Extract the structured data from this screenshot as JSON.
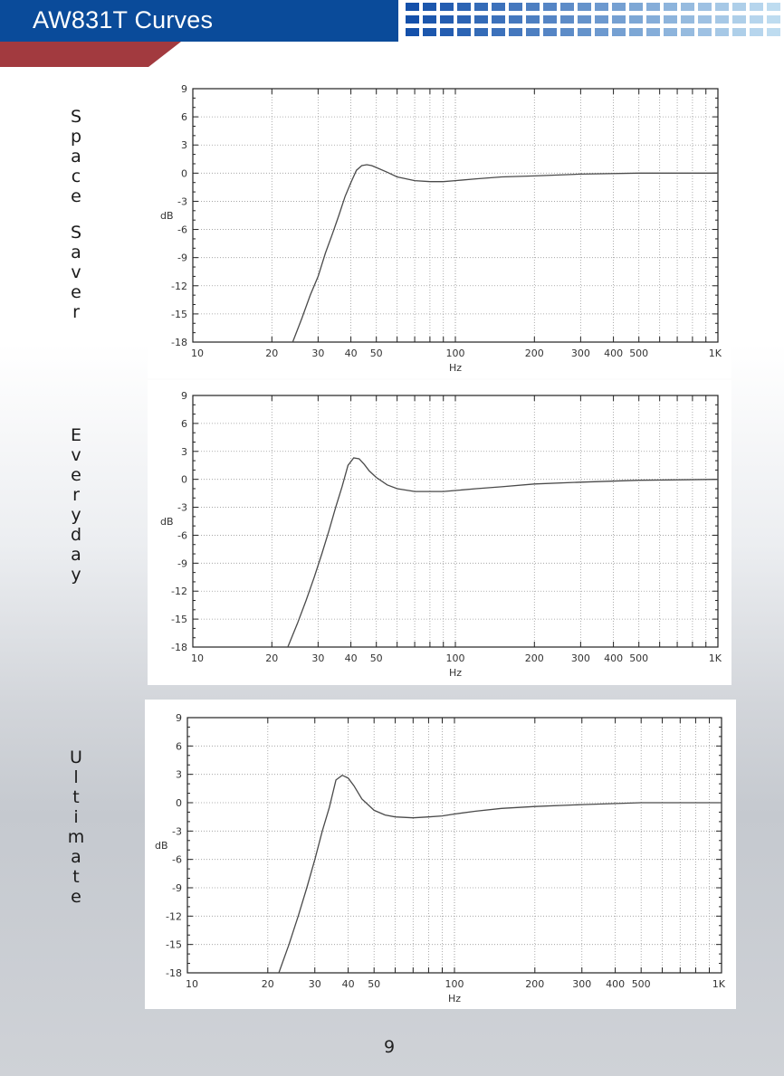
{
  "header": {
    "title": "AW831T Curves"
  },
  "page_number": "9",
  "colors": {
    "header_blue": "#0a4b9a",
    "header_red": "#a23a3f"
  },
  "side_labels": [
    "Space Saver",
    "Everyday",
    "Ultimate"
  ],
  "chart_data": [
    {
      "type": "line",
      "xscale": "log",
      "xlabel": "Hz",
      "ylabel": "dB",
      "xlim": [
        10,
        1000
      ],
      "ylim": [
        -18,
        9
      ],
      "xticks": [
        "10",
        "20",
        "30",
        "40",
        "50",
        "100",
        "200",
        "300",
        "400",
        "500",
        "1K"
      ],
      "yticks": [
        "9",
        "6",
        "3",
        "0",
        "-3",
        "-6",
        "-9",
        "-12",
        "-15",
        "-18"
      ],
      "grid": true,
      "series": [
        {
          "x": [
            24,
            26,
            28,
            30,
            32,
            34,
            36,
            38,
            40,
            42,
            44,
            46,
            48,
            50,
            55,
            60,
            70,
            80,
            90,
            100,
            120,
            150,
            200,
            300,
            500,
            1000
          ],
          "y": [
            -18,
            -15.5,
            -13,
            -11,
            -8.5,
            -6.5,
            -4.5,
            -2.5,
            -1,
            0.3,
            0.8,
            0.9,
            0.8,
            0.6,
            0.1,
            -0.4,
            -0.8,
            -0.9,
            -0.9,
            -0.8,
            -0.6,
            -0.4,
            -0.3,
            -0.1,
            0,
            0
          ]
        }
      ]
    },
    {
      "type": "line",
      "xscale": "log",
      "xlabel": "Hz",
      "ylabel": "dB",
      "xlim": [
        10,
        1000
      ],
      "ylim": [
        -18,
        9
      ],
      "xticks": [
        "10",
        "20",
        "30",
        "40",
        "50",
        "100",
        "200",
        "300",
        "400",
        "500",
        "1K"
      ],
      "yticks": [
        "9",
        "6",
        "3",
        "0",
        "-3",
        "-6",
        "-9",
        "-12",
        "-15",
        "-18"
      ],
      "grid": true,
      "series": [
        {
          "x": [
            23,
            25,
            27,
            29,
            31,
            33,
            35,
            37,
            39,
            41,
            43,
            45,
            47,
            50,
            55,
            60,
            70,
            80,
            90,
            100,
            120,
            150,
            200,
            300,
            500,
            1000
          ],
          "y": [
            -18,
            -15.5,
            -13,
            -10.5,
            -8,
            -5.5,
            -3,
            -0.8,
            1.5,
            2.3,
            2.2,
            1.6,
            0.9,
            0.2,
            -0.6,
            -1,
            -1.3,
            -1.3,
            -1.3,
            -1.2,
            -1,
            -0.8,
            -0.5,
            -0.3,
            -0.1,
            0
          ]
        }
      ]
    },
    {
      "type": "line",
      "xscale": "log",
      "xlabel": "Hz",
      "ylabel": "dB",
      "xlim": [
        10,
        1000
      ],
      "ylim": [
        -18,
        9
      ],
      "xticks": [
        "10",
        "20",
        "30",
        "40",
        "50",
        "100",
        "200",
        "300",
        "400",
        "500",
        "1K"
      ],
      "yticks": [
        "9",
        "6",
        "3",
        "0",
        "-3",
        "-6",
        "-9",
        "-12",
        "-15",
        "-18"
      ],
      "grid": true,
      "series": [
        {
          "x": [
            22,
            24,
            26,
            28,
            30,
            32,
            34,
            36,
            38,
            40,
            42,
            45,
            50,
            55,
            60,
            70,
            80,
            90,
            100,
            120,
            150,
            200,
            300,
            500,
            1000
          ],
          "y": [
            -18,
            -15,
            -12,
            -9,
            -6,
            -3,
            -0.5,
            2.4,
            2.9,
            2.6,
            1.8,
            0.4,
            -0.8,
            -1.3,
            -1.5,
            -1.6,
            -1.5,
            -1.4,
            -1.2,
            -0.9,
            -0.6,
            -0.4,
            -0.2,
            0,
            0
          ]
        }
      ]
    }
  ]
}
